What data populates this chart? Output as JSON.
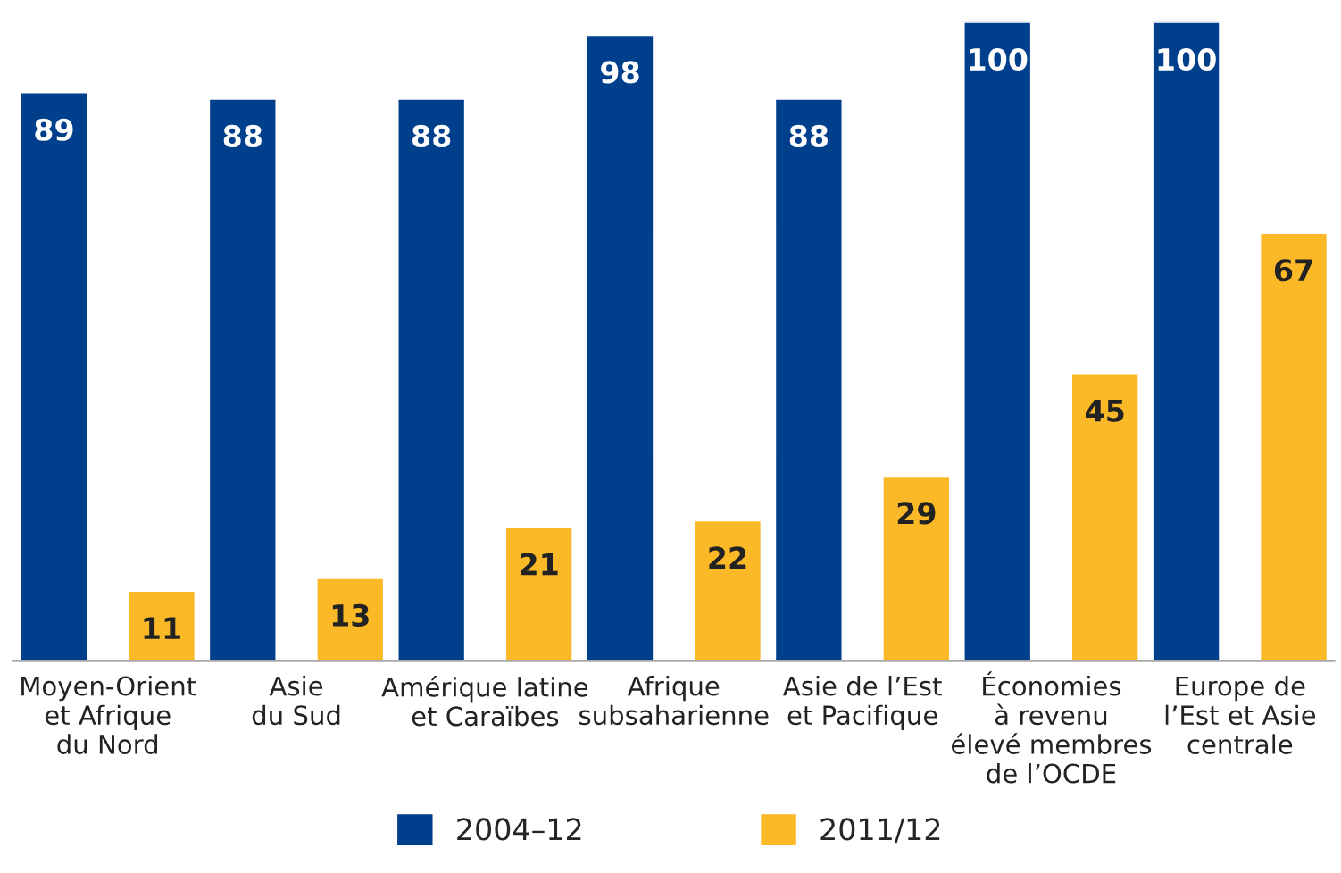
{
  "chart_data": {
    "type": "bar",
    "categories": [
      "Moyen-Orient\net Afrique\ndu Nord",
      "Asie\ndu Sud",
      "Amérique latine\net Caraïbes",
      "Afrique\nsubsaharienne",
      "Asie de l’Est\net Pacifique",
      "Économies\nà revenu\nélevé membres\nde l’OCDE",
      "Europe de\nl’Est et Asie\ncentrale"
    ],
    "series": [
      {
        "name": "2004–12",
        "color": "#003f8c",
        "values": [
          89,
          88,
          88,
          98,
          88,
          100,
          100
        ]
      },
      {
        "name": "2011/12",
        "color": "#fbb927",
        "values": [
          11,
          13,
          21,
          22,
          29,
          45,
          67
        ]
      }
    ],
    "data_labels": true,
    "legend": "bottom",
    "grid": false
  }
}
